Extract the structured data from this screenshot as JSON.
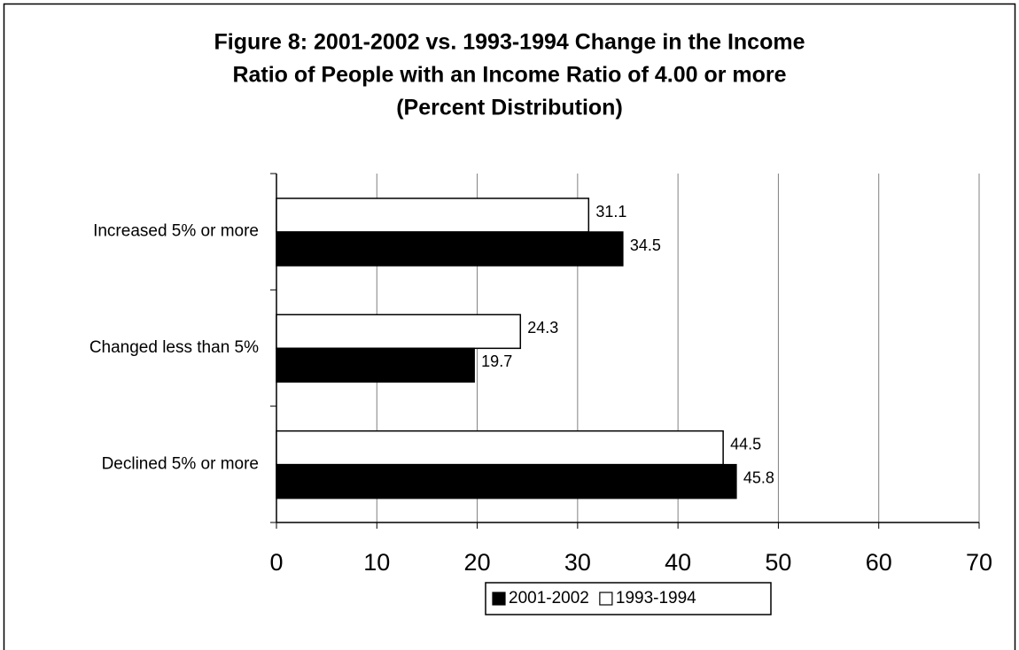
{
  "chart_data": {
    "type": "hbar",
    "title_lines": [
      "Figure 8: 2001-2002 vs. 1993-1994 Change in the Income",
      "Ratio of People with an Income Ratio of 4.00 or more",
      "(Percent Distribution)"
    ],
    "categories": [
      "Increased 5% or more",
      "Changed less than 5%",
      "Declined 5% or more"
    ],
    "series": [
      {
        "name": "2001-2002",
        "color": "#000000",
        "values": [
          34.5,
          19.7,
          45.8
        ]
      },
      {
        "name": "1993-1994",
        "color": "#ffffff",
        "values": [
          31.1,
          24.3,
          44.5
        ]
      }
    ],
    "xlim": [
      0,
      70
    ],
    "xticks": [
      0,
      10,
      20,
      30,
      40,
      50,
      60,
      70
    ],
    "grid": true,
    "legend": "bottom"
  }
}
